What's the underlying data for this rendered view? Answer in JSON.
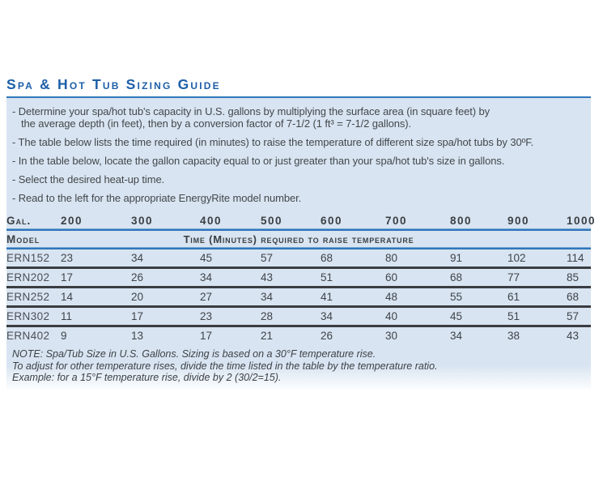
{
  "page": {
    "title": "Spa & Hot Tub Sizing Guide"
  },
  "intro": {
    "lines": [
      "- Determine your spa/hot tub's capacity in U.S. gallons by multiplying the surface area (in square feet) by",
      "the average depth (in feet), then by a conversion factor of 7-1/2  (1 ft³ = 7-1/2 gallons).",
      "- The table below lists the time required (in minutes) to raise the temperature of different size spa/hot tubs by 30ºF.",
      "- In the table below, locate the gallon capacity equal to or just greater than your spa/hot tub's size in gallons.",
      "- Select the desired heat-up time.",
      "- Read to the left for the appropriate EnergyRite model number."
    ]
  },
  "table": {
    "gal_label": "Gal.",
    "model_label": "Model",
    "time_label": "Time (Minutes) required to raise temperature",
    "capacities": [
      "200",
      "300",
      "400",
      "500",
      "600",
      "700",
      "800",
      "900",
      "1000"
    ],
    "rows": [
      {
        "model": "ERN152",
        "values": [
          23,
          34,
          45,
          57,
          68,
          80,
          91,
          102,
          114
        ]
      },
      {
        "model": "ERN202",
        "values": [
          17,
          26,
          34,
          43,
          51,
          60,
          68,
          77,
          85
        ]
      },
      {
        "model": "ERN252",
        "values": [
          14,
          20,
          27,
          34,
          41,
          48,
          55,
          61,
          68
        ]
      },
      {
        "model": "ERN302",
        "values": [
          11,
          17,
          23,
          28,
          34,
          40,
          45,
          51,
          57
        ]
      },
      {
        "model": "ERN402",
        "values": [
          9,
          13,
          17,
          21,
          26,
          30,
          34,
          38,
          43
        ]
      }
    ]
  },
  "note": {
    "lines": [
      "NOTE: Spa/Tub Size in U.S. Gallons. Sizing is based on a 30°F temperature rise.",
      "To adjust for other temperature rises, divide the time listed in the table by the temperature ratio.",
      "Example: for a 15°F temperature rise, divide by 2 (30/2=15)."
    ]
  },
  "colors": {
    "title_blue": "#1d5fa8",
    "rule_blue": "#2f77bb",
    "panel_bg": "#d8e4f1",
    "rule_dark": "#3a3d41"
  }
}
